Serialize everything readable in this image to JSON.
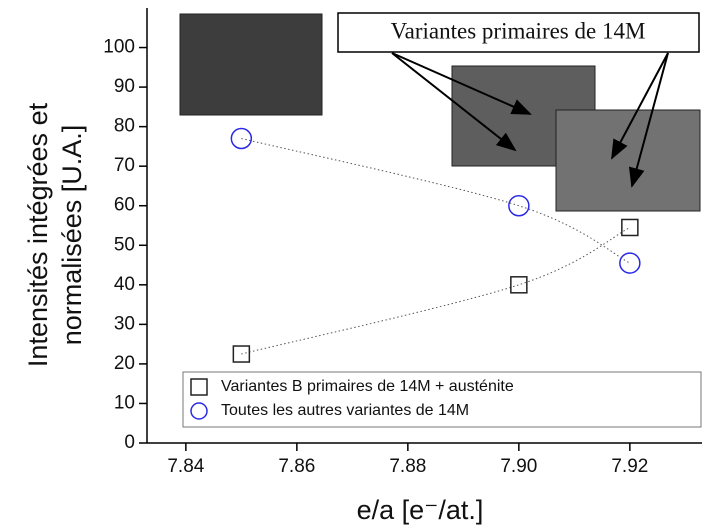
{
  "chart_data": {
    "type": "scatter",
    "xlabel": "e/a [e⁻/at.]",
    "ylabel": [
      "Intensités intégrées et",
      "normalisées [U.A.]"
    ],
    "annotation": "Variantes primaires de 14M",
    "xlim": [
      7.833,
      7.933
    ],
    "ylim": [
      0,
      110
    ],
    "xticks": [
      7.84,
      7.86,
      7.88,
      {
        "value": 7.9,
        "label": "7.90"
      },
      7.92
    ],
    "yticks": [
      0,
      10,
      20,
      30,
      40,
      50,
      60,
      70,
      80,
      90,
      100
    ],
    "series": [
      {
        "name": "Variantes B primaires de 14M + austénite",
        "color": "#222222",
        "marker": "square",
        "x": [
          7.85,
          7.9,
          7.92
        ],
        "values": [
          22.5,
          40,
          54.5
        ]
      },
      {
        "name": "Toutes les autres variantes de 14M",
        "color": "#2a2ae6",
        "marker": "circle",
        "x": [
          7.85,
          7.9,
          7.92
        ],
        "values": [
          77,
          60,
          45.5
        ]
      }
    ]
  }
}
